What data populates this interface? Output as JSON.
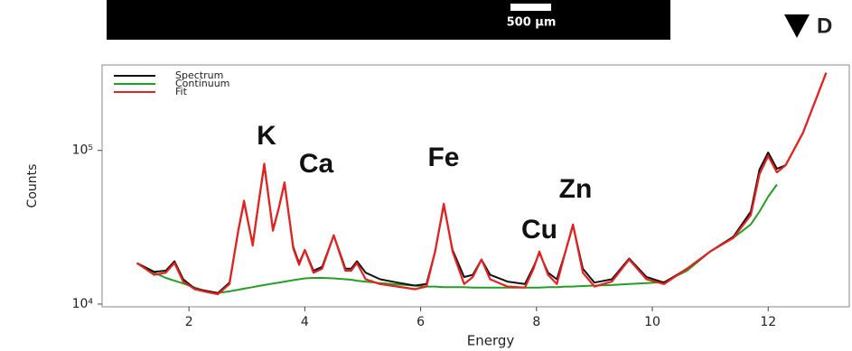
{
  "image_strip": {
    "scale_bar_label": "500 µm"
  },
  "panel_label": "D",
  "chart_data": {
    "type": "line",
    "x_label": "Energy",
    "y_label": "Counts",
    "log_y": true,
    "legend": "upper left",
    "xlim": [
      0.5,
      13.4
    ],
    "ylim": [
      9600,
      360000
    ],
    "xticks": [
      2,
      4,
      6,
      8,
      10,
      12
    ],
    "yticks": [
      {
        "value": 10000,
        "label": "10⁴"
      },
      {
        "value": 100000,
        "label": "10⁵"
      }
    ],
    "annotations": [
      "K",
      "Ca",
      "Fe",
      "Cu",
      "Zn"
    ],
    "x": [
      1.1,
      1.4,
      1.6,
      1.75,
      1.9,
      2.1,
      2.3,
      2.5,
      2.7,
      2.85,
      2.95,
      3.1,
      3.2,
      3.3,
      3.45,
      3.55,
      3.65,
      3.8,
      3.9,
      4.0,
      4.15,
      4.3,
      4.5,
      4.7,
      4.8,
      4.9,
      5.05,
      5.3,
      5.6,
      5.9,
      6.1,
      6.25,
      6.4,
      6.55,
      6.75,
      6.9,
      7.05,
      7.2,
      7.5,
      7.8,
      7.95,
      8.05,
      8.2,
      8.35,
      8.5,
      8.63,
      8.8,
      9.0,
      9.3,
      9.6,
      9.9,
      10.2,
      10.6,
      11.0,
      11.4,
      11.7,
      11.85,
      12.0,
      12.15,
      12.3,
      12.6,
      13.0
    ],
    "series": [
      {
        "name": "Spectrum",
        "color": "#111111",
        "values": [
          18500,
          16200,
          16500,
          19000,
          14500,
          12600,
          12200,
          11800,
          13800,
          30000,
          46000,
          24500,
          45000,
          80000,
          30500,
          42000,
          61000,
          23500,
          18500,
          22500,
          16500,
          17500,
          28000,
          17000,
          17000,
          19000,
          16000,
          14500,
          13800,
          13200,
          13500,
          22000,
          44000,
          22500,
          15000,
          15500,
          19500,
          15500,
          14000,
          13500,
          17500,
          21500,
          16000,
          14500,
          22000,
          32500,
          17000,
          13800,
          14500,
          19800,
          15000,
          13800,
          17000,
          22000,
          27500,
          40000,
          75000,
          97000,
          76000,
          80000,
          130000,
          320000
        ]
      },
      {
        "name": "Continuum",
        "color": "#22a022",
        "values": [
          18400,
          16000,
          14800,
          14200,
          13600,
          12800,
          12100,
          11800,
          12100,
          12400,
          12600,
          12900,
          13100,
          13300,
          13600,
          13800,
          14000,
          14300,
          14500,
          14700,
          14800,
          14800,
          14700,
          14500,
          14400,
          14200,
          14000,
          13700,
          13400,
          13200,
          13000,
          13000,
          12900,
          12900,
          12900,
          12800,
          12800,
          12800,
          12800,
          12800,
          12800,
          12800,
          12900,
          12900,
          13000,
          13000,
          13100,
          13200,
          13300,
          13500,
          13700,
          13900,
          16500,
          22000,
          27000,
          33000,
          40000,
          50000,
          60000,
          null,
          null,
          null
        ]
      },
      {
        "name": "Fit",
        "color": "#e8211f",
        "values": [
          18500,
          15500,
          16000,
          18500,
          14000,
          12500,
          12000,
          11600,
          13500,
          30000,
          47000,
          24000,
          45000,
          82000,
          30000,
          42000,
          62000,
          23000,
          18000,
          22500,
          16000,
          17000,
          28000,
          16500,
          16500,
          18500,
          14500,
          13500,
          13000,
          12500,
          13000,
          22000,
          45000,
          22000,
          13500,
          15000,
          19500,
          14500,
          13000,
          12800,
          17000,
          22000,
          15500,
          13500,
          22000,
          33000,
          16000,
          13000,
          14000,
          19500,
          14500,
          13500,
          17000,
          22000,
          27000,
          38000,
          70000,
          92000,
          72000,
          80000,
          130000,
          320000
        ]
      }
    ]
  }
}
